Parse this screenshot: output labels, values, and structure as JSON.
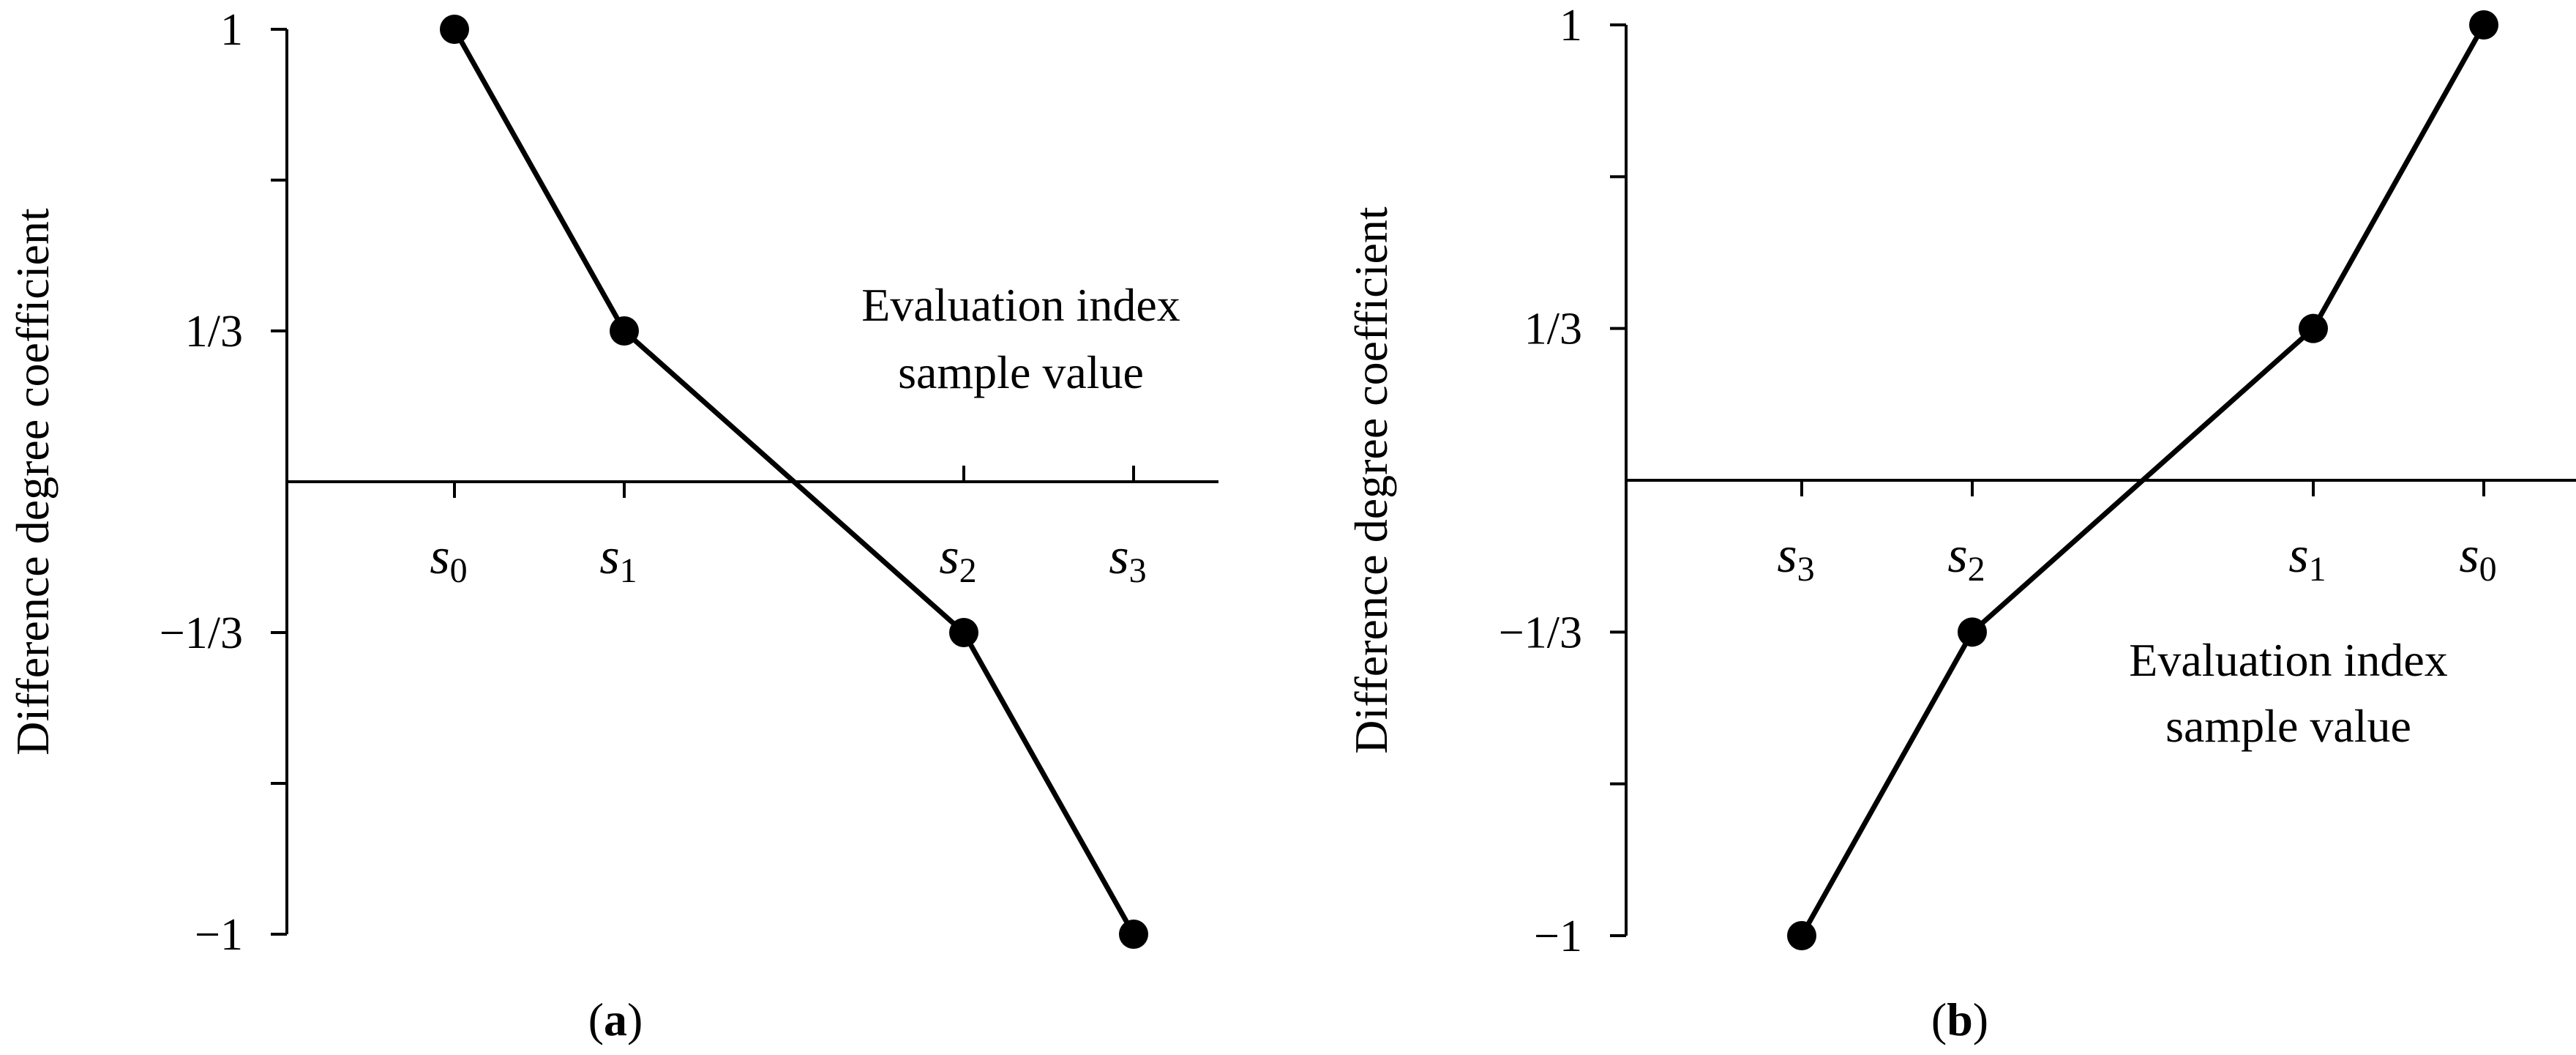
{
  "chart_data": [
    {
      "type": "line",
      "panel_label": {
        "open": "(",
        "letter": "a",
        "close": ")"
      },
      "ylabel": "Difference degree coefficient",
      "xlabel_lines": [
        "Evaluation index",
        "sample value"
      ],
      "ylim": [
        -1,
        1
      ],
      "y_ticks": [
        1,
        0.6667,
        0.3333,
        0,
        -0.3333,
        -0.6667,
        -1
      ],
      "y_tick_labels": [
        {
          "value": 1,
          "label": "1"
        },
        {
          "value": 0.3333,
          "label": "1/3"
        },
        {
          "value": -0.3333,
          "label": "−1/3"
        },
        {
          "value": -1,
          "label": "−1"
        }
      ],
      "x_categories": [
        {
          "base": "s",
          "sub": "0",
          "pos": 0,
          "label_side": "below"
        },
        {
          "base": "s",
          "sub": "1",
          "pos": 1,
          "label_side": "below"
        },
        {
          "base": "s",
          "sub": "2",
          "pos": 3,
          "label_side": "above"
        },
        {
          "base": "s",
          "sub": "3",
          "pos": 4,
          "label_side": "above"
        }
      ],
      "xlim": [
        -1,
        4.5
      ],
      "series": [
        {
          "x": [
            0,
            1,
            3,
            4
          ],
          "y": [
            1,
            0.3333,
            -0.3333,
            -1
          ],
          "markers": [
            true,
            true,
            true,
            true
          ]
        }
      ]
    },
    {
      "type": "line",
      "panel_label": {
        "open": "(",
        "letter": "b",
        "close": ")"
      },
      "ylabel": "Difference degree coefficient",
      "xlabel_lines": [
        "Evaluation index",
        "sample value"
      ],
      "ylim": [
        -1,
        1
      ],
      "y_ticks": [
        1,
        0.6667,
        0.3333,
        0,
        -0.3333,
        -0.6667,
        -1
      ],
      "y_tick_labels": [
        {
          "value": 1,
          "label": "1"
        },
        {
          "value": 0.3333,
          "label": "1/3"
        },
        {
          "value": -0.3333,
          "label": "−1/3"
        },
        {
          "value": -1,
          "label": "−1"
        }
      ],
      "x_categories": [
        {
          "base": "s",
          "sub": "3",
          "pos": 0,
          "label_side": "below"
        },
        {
          "base": "s",
          "sub": "2",
          "pos": 1,
          "label_side": "below"
        },
        {
          "base": "s",
          "sub": "1",
          "pos": 3,
          "label_side": "below"
        },
        {
          "base": "s",
          "sub": "0",
          "pos": 4,
          "label_side": "below"
        }
      ],
      "xlim": [
        -1,
        4.5
      ],
      "series": [
        {
          "x": [
            0,
            1,
            3,
            4
          ],
          "y": [
            -1,
            -0.3333,
            0.3333,
            1
          ],
          "markers": [
            true,
            true,
            true,
            true
          ]
        }
      ]
    }
  ]
}
